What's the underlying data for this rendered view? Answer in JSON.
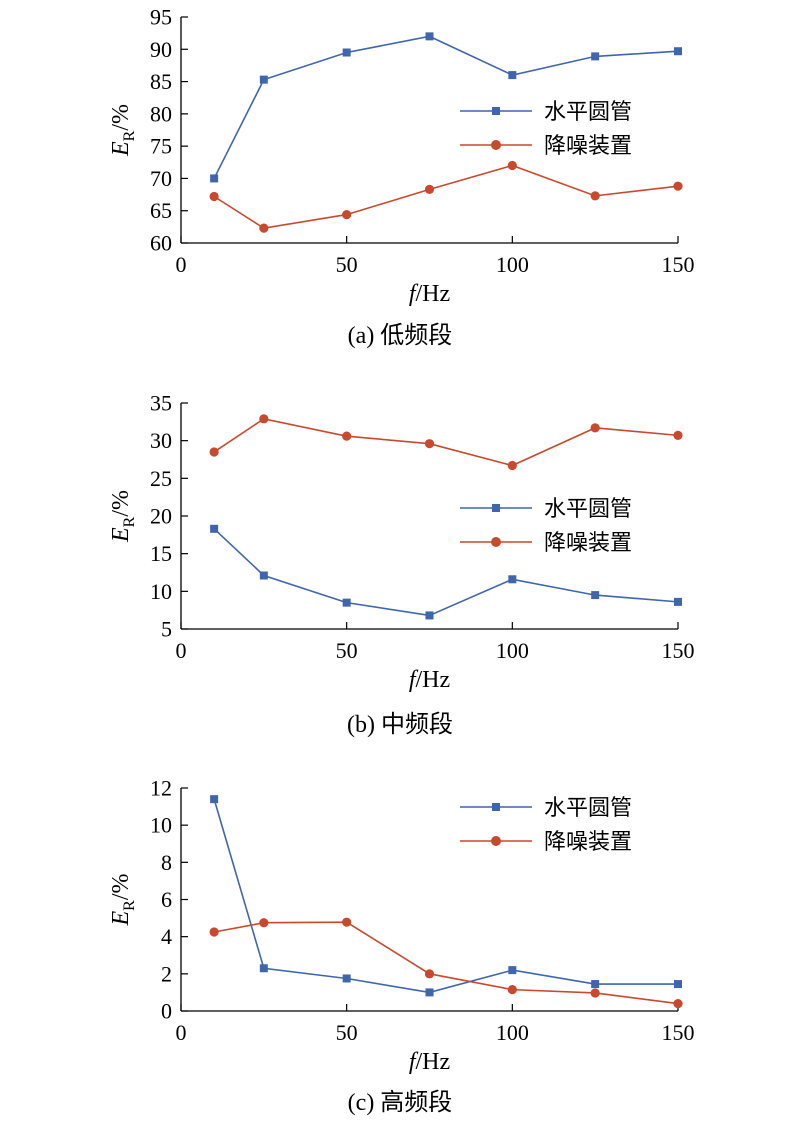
{
  "chart_data": [
    {
      "type": "line",
      "caption": "(a) 低频段",
      "x": [
        10,
        25,
        50,
        75,
        100,
        125,
        150
      ],
      "xlim": [
        0,
        150
      ],
      "xticks": [
        0,
        50,
        100,
        150
      ],
      "ylim": [
        60,
        95
      ],
      "yticks": [
        60,
        65,
        70,
        75,
        80,
        85,
        90,
        95
      ],
      "xlabel": {
        "italic": "f",
        "rest": "/Hz"
      },
      "ylabel": {
        "italic": "E",
        "sub": "R",
        "rest": "/%"
      },
      "legend_position": "right",
      "series": [
        {
          "name": "水平圆管",
          "color": "#3f66ad",
          "marker": "square",
          "values": [
            70.0,
            85.3,
            89.5,
            92.0,
            86.0,
            88.9,
            89.7
          ]
        },
        {
          "name": "降噪装置",
          "color": "#c8492e",
          "marker": "circle",
          "values": [
            67.2,
            62.3,
            64.4,
            68.3,
            72.0,
            67.3,
            68.8
          ]
        }
      ]
    },
    {
      "type": "line",
      "caption": "(b) 中频段",
      "x": [
        10,
        25,
        50,
        75,
        100,
        125,
        150
      ],
      "xlim": [
        0,
        150
      ],
      "xticks": [
        0,
        50,
        100,
        150
      ],
      "ylim": [
        5,
        35
      ],
      "yticks": [
        5,
        10,
        15,
        20,
        25,
        30,
        35
      ],
      "xlabel": {
        "italic": "f",
        "rest": "/Hz"
      },
      "ylabel": {
        "italic": "E",
        "sub": "R",
        "rest": "/%"
      },
      "legend_position": "right",
      "series": [
        {
          "name": "水平圆管",
          "color": "#3f66ad",
          "marker": "square",
          "values": [
            18.3,
            12.1,
            8.5,
            6.8,
            11.6,
            9.5,
            8.6
          ]
        },
        {
          "name": "降噪装置",
          "color": "#c8492e",
          "marker": "circle",
          "values": [
            28.5,
            32.9,
            30.6,
            29.6,
            26.7,
            31.7,
            30.7
          ]
        }
      ]
    },
    {
      "type": "line",
      "caption": "(c) 高频段",
      "x": [
        10,
        25,
        50,
        75,
        100,
        125,
        150
      ],
      "xlim": [
        0,
        150
      ],
      "xticks": [
        0,
        50,
        100,
        150
      ],
      "ylim": [
        0,
        12
      ],
      "yticks": [
        0,
        2,
        4,
        6,
        8,
        10,
        12
      ],
      "xlabel": {
        "italic": "f",
        "rest": "/Hz"
      },
      "ylabel": {
        "italic": "E",
        "sub": "R",
        "rest": "/%"
      },
      "legend_position": "top-right",
      "series": [
        {
          "name": "水平圆管",
          "color": "#3f66ad",
          "marker": "square",
          "values": [
            11.4,
            2.3,
            1.75,
            1.0,
            2.2,
            1.45,
            1.45
          ]
        },
        {
          "name": "降噪装置",
          "color": "#c8492e",
          "marker": "circle",
          "values": [
            4.25,
            4.75,
            4.78,
            2.0,
            1.15,
            0.97,
            0.4
          ]
        }
      ]
    }
  ]
}
